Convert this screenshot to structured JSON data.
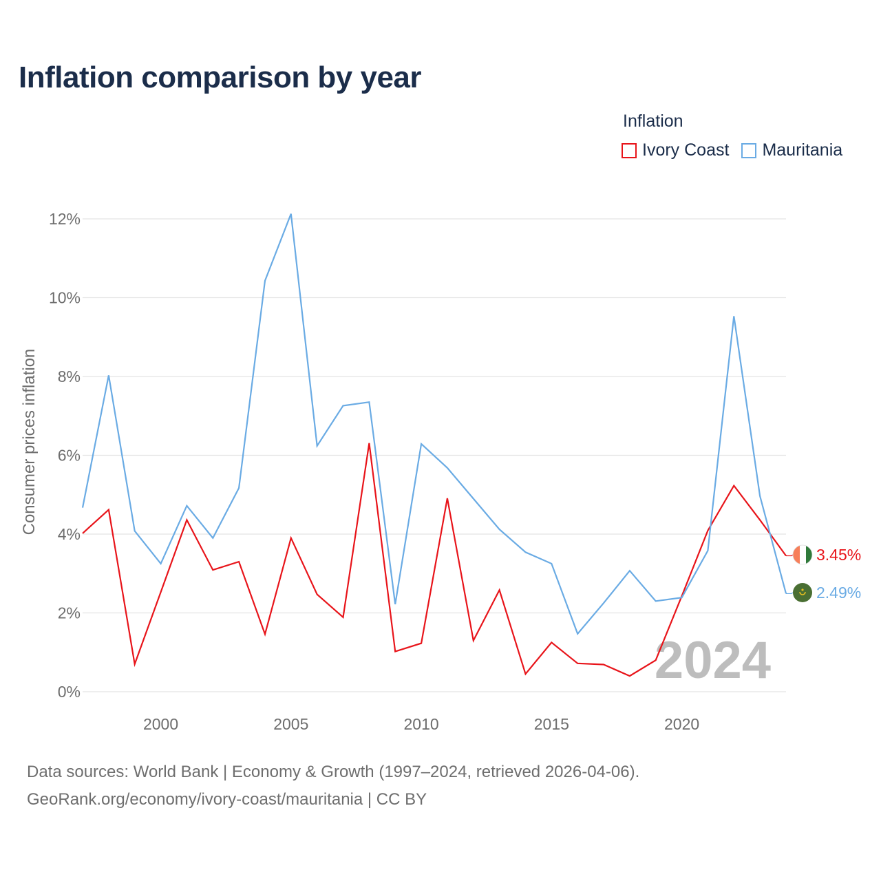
{
  "title": "Inflation comparison by year",
  "legend": {
    "title": "Inflation",
    "items": [
      {
        "label": "Ivory Coast",
        "color": "#e8141a"
      },
      {
        "label": "Mauritania",
        "color": "#6aabe4"
      }
    ]
  },
  "footer": {
    "source_line": "Data sources: World Bank | Economy & Growth (1997–2024, retrieved 2026-04-06).",
    "url_line": "GeoRank.org/economy/ivory-coast/mauritania | CC BY"
  },
  "chart_data": {
    "type": "line",
    "title": "Inflation comparison by year",
    "xlabel": "",
    "ylabel": "Consumer prices inflation",
    "x": [
      1997,
      1998,
      1999,
      2000,
      2001,
      2002,
      2003,
      2004,
      2005,
      2006,
      2007,
      2008,
      2009,
      2010,
      2011,
      2012,
      2013,
      2014,
      2015,
      2016,
      2017,
      2018,
      2019,
      2020,
      2021,
      2022,
      2023,
      2024
    ],
    "xlim": [
      1997,
      2024
    ],
    "ylim": [
      0,
      12
    ],
    "x_ticks": [
      2000,
      2005,
      2010,
      2015,
      2020
    ],
    "y_ticks": [
      0,
      2,
      4,
      6,
      8,
      10,
      12
    ],
    "y_tick_labels": [
      "0%",
      "2%",
      "4%",
      "6%",
      "8%",
      "10%",
      "12%"
    ],
    "grid": true,
    "year_watermark": "2024",
    "series": [
      {
        "name": "Ivory Coast",
        "color": "#e8141a",
        "end_label": "3.45%",
        "values": [
          4.02,
          4.62,
          0.7,
          2.53,
          4.36,
          3.09,
          3.3,
          1.46,
          3.9,
          2.47,
          1.89,
          6.31,
          1.02,
          1.23,
          4.91,
          1.3,
          2.58,
          0.45,
          1.25,
          0.72,
          0.69,
          0.4,
          0.8,
          2.43,
          4.09,
          5.23,
          4.36,
          3.45
        ]
      },
      {
        "name": "Mauritania",
        "color": "#6aabe4",
        "end_label": "2.49%",
        "values": [
          4.67,
          8.03,
          4.08,
          3.25,
          4.72,
          3.9,
          5.17,
          10.43,
          12.13,
          6.24,
          7.26,
          7.35,
          2.22,
          6.29,
          5.68,
          4.9,
          4.12,
          3.54,
          3.25,
          1.47,
          2.25,
          3.07,
          2.3,
          2.39,
          3.58,
          9.53,
          4.97,
          2.49
        ]
      }
    ]
  }
}
